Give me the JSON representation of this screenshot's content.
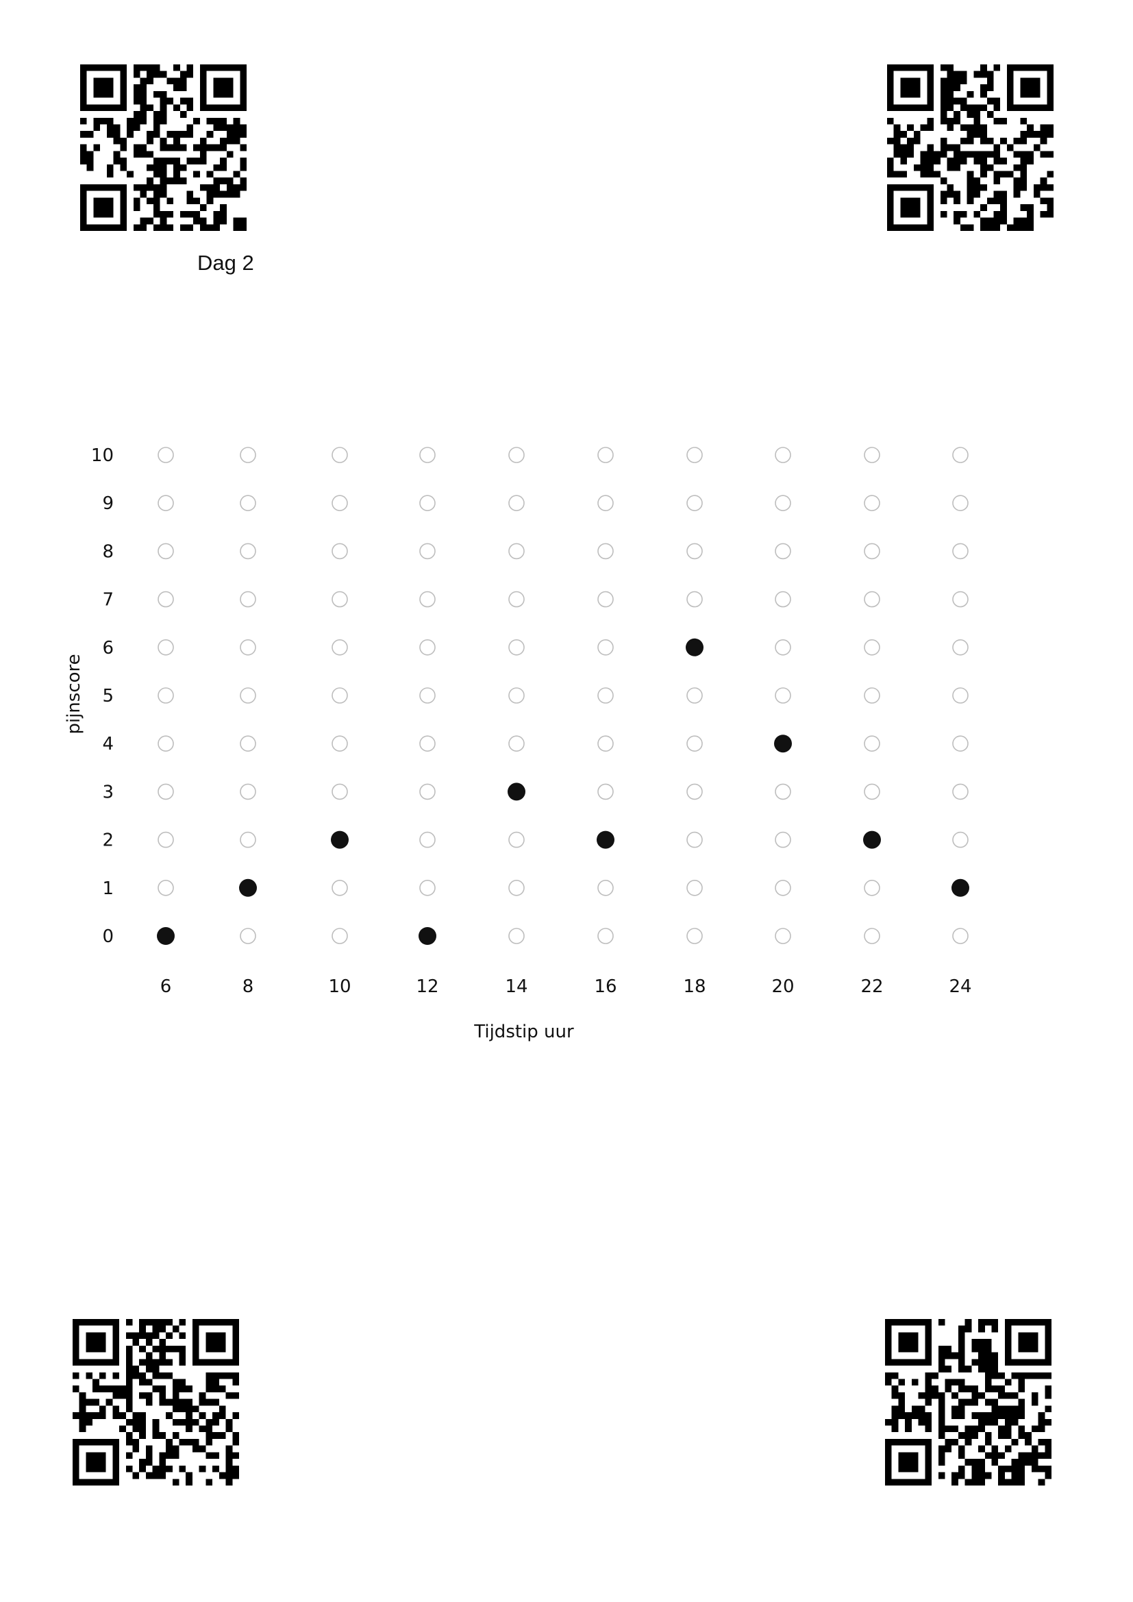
{
  "header": {
    "day_label": "Dag 2"
  },
  "qr_codes": [
    {
      "id": "top-left",
      "seed": 11
    },
    {
      "id": "top-right",
      "seed": 23
    },
    {
      "id": "bottom-left",
      "seed": 37
    },
    {
      "id": "bottom-right",
      "seed": 51
    }
  ],
  "chart_data": {
    "type": "scatter",
    "title": "",
    "xlabel": "Tijdstip uur",
    "ylabel": "pijnscore",
    "x_ticks": [
      "6",
      "8",
      "10",
      "12",
      "14",
      "16",
      "18",
      "20",
      "22",
      "24"
    ],
    "y_ticks": [
      "0",
      "1",
      "2",
      "3",
      "4",
      "5",
      "6",
      "7",
      "8",
      "9",
      "10"
    ],
    "xlim": [
      6,
      24
    ],
    "ylim": [
      0,
      10
    ],
    "grid_marker": "empty-circle",
    "marker_color": "#111111",
    "grid_color": "#bdbdbd",
    "points": [
      {
        "x": 6,
        "y": 0
      },
      {
        "x": 8,
        "y": 1
      },
      {
        "x": 10,
        "y": 2
      },
      {
        "x": 12,
        "y": 0
      },
      {
        "x": 14,
        "y": 3
      },
      {
        "x": 16,
        "y": 2
      },
      {
        "x": 18,
        "y": 6
      },
      {
        "x": 20,
        "y": 4
      },
      {
        "x": 22,
        "y": 2
      },
      {
        "x": 24,
        "y": 1
      }
    ]
  }
}
